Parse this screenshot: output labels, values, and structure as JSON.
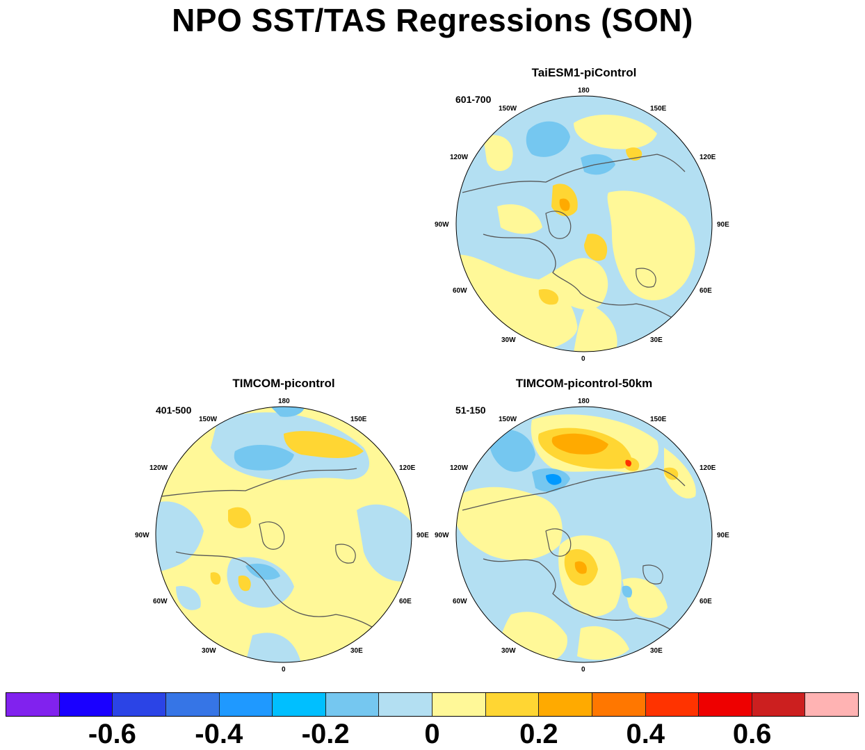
{
  "title": "NPO SST/TAS Regressions (SON)",
  "colors": {
    "ocean": "#b3dff2",
    "land_light": "#fff898",
    "pos1": "#ffd633",
    "pos2": "#ffaa00",
    "pos3": "#ff7700",
    "pos4": "#ff3300",
    "neg1": "#75c7f0",
    "neg2": "#0099ff",
    "coast": "#555555"
  },
  "panels": [
    {
      "id": "taiesm",
      "title": "TaiESM1-piControl",
      "period": "601-700",
      "lon_labels": [
        "180",
        "150E",
        "120E",
        "90E",
        "60E",
        "30E",
        "0",
        "30W",
        "60W",
        "90W",
        "120W",
        "150W"
      ]
    },
    {
      "id": "timcom",
      "title": "TIMCOM-picontrol",
      "period": "401-500",
      "lon_labels": [
        "180",
        "150E",
        "120E",
        "90E",
        "60E",
        "30E",
        "0",
        "30W",
        "60W",
        "90W",
        "120W",
        "150W"
      ]
    },
    {
      "id": "timcom50",
      "title": "TIMCOM-picontrol-50km",
      "period": "51-150",
      "lon_labels": [
        "180",
        "150E",
        "120E",
        "90E",
        "60E",
        "30E",
        "0",
        "30W",
        "60W",
        "90W",
        "120W",
        "150W"
      ]
    }
  ],
  "colorbar": {
    "colors": [
      "#8122ee",
      "#1a00ff",
      "#2b44e6",
      "#3675e6",
      "#1f99ff",
      "#00bfff",
      "#75c7f0",
      "#b3dff2",
      "#fff898",
      "#ffd633",
      "#ffaa00",
      "#ff7700",
      "#ff3300",
      "#ee0000",
      "#cc1f1f",
      "#ffb3b3"
    ],
    "tick_labels": [
      "-0.6",
      "-0.4",
      "-0.2",
      "0",
      "0.2",
      "0.4",
      "0.6"
    ]
  }
}
